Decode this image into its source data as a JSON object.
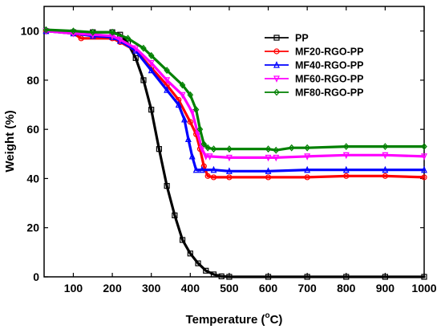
{
  "chart_data": {
    "type": "line",
    "xlabel_main": "Temperature (",
    "xlabel_sup": "o",
    "xlabel_tail": "C)",
    "ylabel": "Weight (%)",
    "xlim": [
      25,
      1000
    ],
    "ylim": [
      0,
      110
    ],
    "xticks": [
      100,
      200,
      300,
      400,
      500,
      600,
      700,
      800,
      900,
      1000
    ],
    "yticks": [
      0,
      20,
      40,
      60,
      80,
      100
    ],
    "grid": false,
    "legend_position": "top-right",
    "series": [
      {
        "name": "PP",
        "color": "#000000",
        "marker": "square",
        "x": [
          30,
          100,
          150,
          200,
          220,
          240,
          260,
          280,
          300,
          320,
          340,
          360,
          380,
          400,
          420,
          440,
          460,
          480,
          500,
          600,
          700,
          800,
          900,
          1000
        ],
        "y": [
          100,
          99.5,
          99.5,
          99.5,
          98.5,
          95,
          89,
          80,
          68,
          52,
          37,
          25,
          15,
          9.5,
          5.5,
          2.5,
          1,
          0.2,
          0,
          0,
          0,
          0,
          0,
          0
        ]
      },
      {
        "name": "MF20-RGO-PP",
        "color": "#ff0000",
        "marker": "circle",
        "x": [
          30,
          100,
          120,
          200,
          220,
          260,
          300,
          340,
          370,
          400,
          415,
          425,
          435,
          445,
          460,
          500,
          600,
          700,
          800,
          900,
          1000
        ],
        "y": [
          100,
          99,
          97,
          97,
          95.5,
          92,
          85,
          78,
          72,
          63,
          58,
          52,
          45,
          41,
          40.5,
          40.5,
          40.5,
          40.5,
          41,
          41,
          40.5
        ]
      },
      {
        "name": "MF40-RGO-PP",
        "color": "#0000ff",
        "marker": "triangle-up",
        "x": [
          30,
          100,
          150,
          200,
          220,
          260,
          300,
          340,
          370,
          385,
          395,
          405,
          415,
          430,
          460,
          500,
          600,
          700,
          800,
          900,
          1000
        ],
        "y": [
          100,
          99,
          98,
          97.5,
          96,
          92,
          84,
          76,
          70,
          64,
          56,
          49,
          43.5,
          43.5,
          43.5,
          43,
          43,
          43.5,
          43.5,
          43.5,
          43.5
        ]
      },
      {
        "name": "MF60-RGO-PP",
        "color": "#ff00ff",
        "marker": "triangle-down",
        "x": [
          30,
          100,
          150,
          200,
          220,
          260,
          300,
          340,
          380,
          405,
          420,
          430,
          440,
          450,
          500,
          600,
          620,
          700,
          800,
          900,
          1000
        ],
        "y": [
          100,
          99,
          98.5,
          98,
          96.5,
          93,
          87,
          80,
          74,
          67,
          58,
          52,
          49,
          49,
          48.5,
          48.5,
          48.5,
          49,
          49.5,
          49.5,
          49
        ]
      },
      {
        "name": "MF80-RGO-PP",
        "color": "#008000",
        "marker": "diamond",
        "x": [
          30,
          100,
          150,
          200,
          240,
          280,
          300,
          340,
          380,
          400,
          415,
          425,
          435,
          445,
          460,
          500,
          600,
          620,
          660,
          700,
          800,
          900,
          1000
        ],
        "y": [
          100.5,
          100,
          99.5,
          99.5,
          97,
          93,
          90,
          84,
          78,
          74,
          68,
          60,
          54,
          52.5,
          52,
          52,
          52,
          51.5,
          52.5,
          52.5,
          53,
          53,
          53
        ]
      }
    ]
  }
}
